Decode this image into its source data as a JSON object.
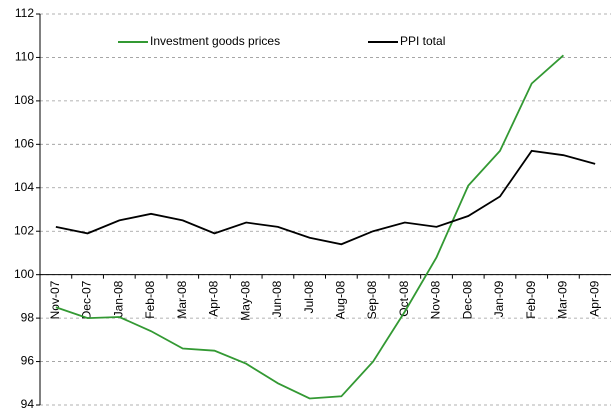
{
  "chart_data": {
    "type": "line",
    "categories": [
      "Nov-07",
      "Dec-07",
      "Jan-08",
      "Feb-08",
      "Mar-08",
      "Apr-08",
      "May-08",
      "Jun-08",
      "Jul-08",
      "Aug-08",
      "Sep-08",
      "Oct-08",
      "Nov-08",
      "Dec-08",
      "Jan-09",
      "Feb-09",
      "Mar-09",
      "Apr-09"
    ],
    "series": [
      {
        "name": "Investment goods prices",
        "color": "#339933",
        "values": [
          98.5,
          98.0,
          98.05,
          97.4,
          96.6,
          96.5,
          95.9,
          95.0,
          94.3,
          94.4,
          96.0,
          98.3,
          100.8,
          104.1,
          105.7,
          108.8,
          110.1,
          null
        ]
      },
      {
        "name": "PPI total",
        "color": "#000000",
        "values": [
          102.2,
          101.9,
          102.5,
          102.8,
          102.5,
          101.9,
          102.4,
          102.2,
          101.7,
          101.4,
          102.0,
          102.4,
          102.2,
          102.7,
          103.6,
          105.7,
          105.5,
          105.1
        ]
      }
    ],
    "ylim": [
      94,
      112
    ],
    "yticks": [
      94,
      96,
      98,
      100,
      102,
      104,
      106,
      108,
      110,
      112
    ],
    "x_axis_at": 100,
    "grid": true,
    "legend": "top"
  }
}
